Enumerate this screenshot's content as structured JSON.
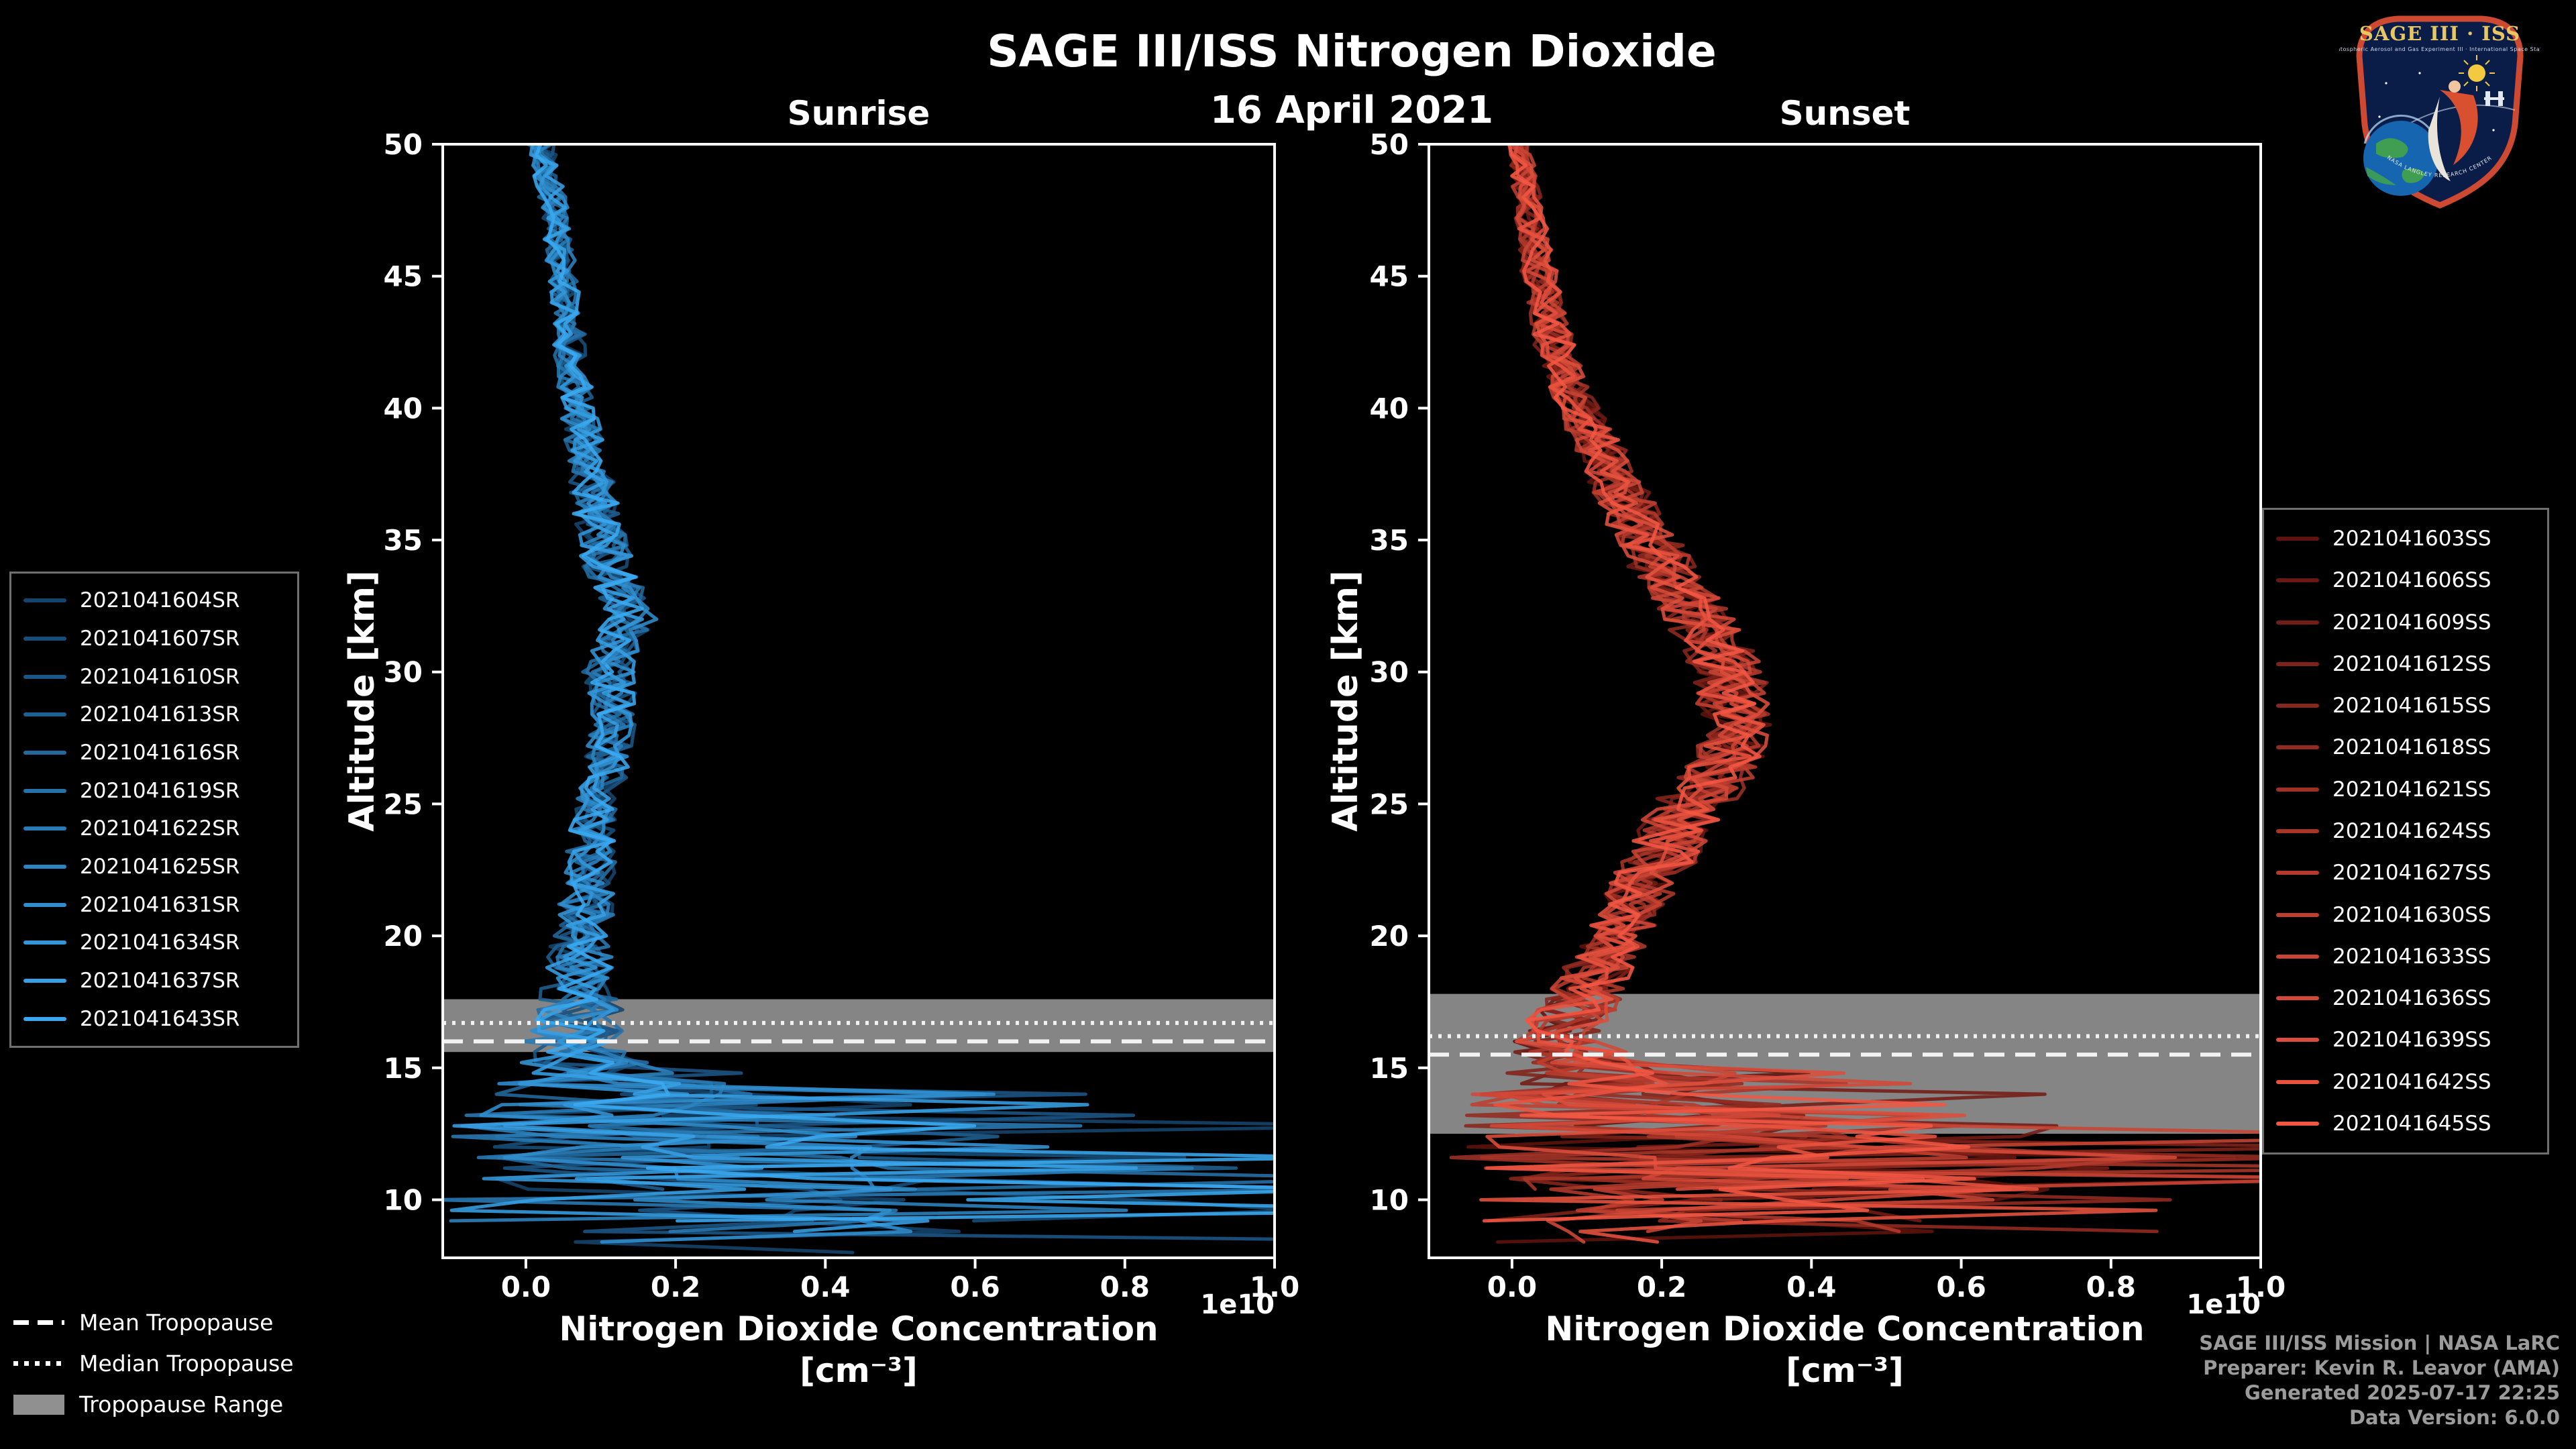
{
  "header": {
    "title": "SAGE III/ISS Nitrogen Dioxide",
    "date": "16 April 2021"
  },
  "chart_data": [
    {
      "type": "line",
      "title": "Sunrise",
      "xlabel": "Nitrogen Dioxide Concentration",
      "xlabel_units": "[cm⁻³]",
      "ylabel": "Altitude [km]",
      "offset_label": "1e10",
      "xlim": [
        -0.111,
        1.0
      ],
      "ylim": [
        7.8,
        50
      ],
      "xtick_values": [
        0.0,
        0.2,
        0.4,
        0.6,
        0.8,
        1.0
      ],
      "xtick_labels": [
        "0.0",
        "0.2",
        "0.4",
        "0.6",
        "0.8",
        "1.0"
      ],
      "ytick_values": [
        10,
        15,
        20,
        25,
        30,
        35,
        40,
        45,
        50
      ],
      "ytick_labels": [
        "10",
        "15",
        "20",
        "25",
        "30",
        "35",
        "40",
        "45",
        "50"
      ],
      "legend_position": "outside-left",
      "grid": false,
      "series": [
        "2021041604SR",
        "2021041607SR",
        "2021041610SR",
        "2021041613SR",
        "2021041616SR",
        "2021041619SR",
        "2021041622SR",
        "2021041625SR",
        "2021041631SR",
        "2021041634SR",
        "2021041637SR",
        "2021041643SR"
      ],
      "color_start": "#14456e",
      "color_end": "#3aa8f0",
      "band_color": "#909090",
      "base_profile": [
        [
          50,
          0.02
        ],
        [
          48,
          0.035
        ],
        [
          46,
          0.045
        ],
        [
          44,
          0.055
        ],
        [
          42,
          0.06
        ],
        [
          40,
          0.07
        ],
        [
          38,
          0.085
        ],
        [
          36,
          0.095
        ],
        [
          34,
          0.11
        ],
        [
          32,
          0.14
        ],
        [
          31,
          0.12
        ],
        [
          30,
          0.11
        ],
        [
          28,
          0.115
        ],
        [
          26,
          0.105
        ],
        [
          24,
          0.09
        ],
        [
          22,
          0.085
        ],
        [
          20,
          0.075
        ],
        [
          18,
          0.07
        ],
        [
          17,
          0.075
        ],
        [
          16,
          0.06
        ],
        [
          15,
          0.09
        ],
        [
          14,
          0.12
        ],
        [
          13,
          0.14
        ],
        [
          12,
          0.17
        ],
        [
          11,
          0.19
        ],
        [
          10,
          0.23
        ],
        [
          9,
          0.26
        ],
        [
          7.8,
          0.24
        ]
      ],
      "noise_profile": [
        [
          50,
          0.018
        ],
        [
          45,
          0.02
        ],
        [
          40,
          0.025
        ],
        [
          35,
          0.035
        ],
        [
          30,
          0.035
        ],
        [
          25,
          0.03
        ],
        [
          20,
          0.04
        ],
        [
          18,
          0.05
        ],
        [
          16,
          0.07
        ],
        [
          15,
          0.1
        ],
        [
          14,
          0.2
        ],
        [
          13,
          0.26
        ],
        [
          12,
          0.3
        ],
        [
          11,
          0.34
        ],
        [
          10,
          0.38
        ],
        [
          9,
          0.36
        ],
        [
          7.8,
          0.32
        ]
      ],
      "alt_step": 0.4,
      "alt_min_base": 7.9,
      "alt_min_jitter": 2.4,
      "spike_below": 15,
      "spike_prob": 0.3,
      "spike_scale": 3,
      "tropopause": {
        "mean": 16.0,
        "median": 16.7,
        "range": [
          15.6,
          17.6
        ]
      }
    },
    {
      "type": "line",
      "title": "Sunset",
      "xlabel": "Nitrogen Dioxide Concentration",
      "xlabel_units": "[cm⁻³]",
      "ylabel": "Altitude [km]",
      "offset_label": "1e10",
      "xlim": [
        -0.111,
        1.0
      ],
      "ylim": [
        7.8,
        50
      ],
      "xtick_values": [
        0.0,
        0.2,
        0.4,
        0.6,
        0.8,
        1.0
      ],
      "xtick_labels": [
        "0.0",
        "0.2",
        "0.4",
        "0.6",
        "0.8",
        "1.0"
      ],
      "ytick_values": [
        10,
        15,
        20,
        25,
        30,
        35,
        40,
        45,
        50
      ],
      "ytick_labels": [
        "10",
        "15",
        "20",
        "25",
        "30",
        "35",
        "40",
        "45",
        "50"
      ],
      "legend_position": "outside-right",
      "grid": false,
      "series": [
        "2021041603SS",
        "2021041606SS",
        "2021041609SS",
        "2021041612SS",
        "2021041615SS",
        "2021041618SS",
        "2021041621SS",
        "2021041624SS",
        "2021041627SS",
        "2021041630SS",
        "2021041633SS",
        "2021041636SS",
        "2021041639SS",
        "2021041642SS",
        "2021041645SS"
      ],
      "color_start": "#5f130e",
      "color_end": "#f25743",
      "band_color": "#909090",
      "base_profile": [
        [
          50,
          0.01
        ],
        [
          48,
          0.02
        ],
        [
          46,
          0.03
        ],
        [
          44,
          0.045
        ],
        [
          42,
          0.06
        ],
        [
          40,
          0.09
        ],
        [
          38,
          0.125
        ],
        [
          36,
          0.16
        ],
        [
          34,
          0.2
        ],
        [
          32,
          0.25
        ],
        [
          30,
          0.29
        ],
        [
          28,
          0.3
        ],
        [
          27,
          0.29
        ],
        [
          26,
          0.27
        ],
        [
          25,
          0.24
        ],
        [
          24,
          0.22
        ],
        [
          23,
          0.2
        ],
        [
          22,
          0.18
        ],
        [
          21,
          0.16
        ],
        [
          20,
          0.14
        ],
        [
          19,
          0.12
        ],
        [
          18,
          0.1
        ],
        [
          17,
          0.08
        ],
        [
          16,
          0.07
        ],
        [
          15,
          0.09
        ],
        [
          14,
          0.12
        ],
        [
          13,
          0.17
        ],
        [
          12,
          0.21
        ],
        [
          11,
          0.27
        ],
        [
          10,
          0.33
        ],
        [
          9,
          0.29
        ],
        [
          7.8,
          0.27
        ]
      ],
      "noise_profile": [
        [
          50,
          0.015
        ],
        [
          45,
          0.025
        ],
        [
          40,
          0.03
        ],
        [
          35,
          0.045
        ],
        [
          30,
          0.05
        ],
        [
          27,
          0.05
        ],
        [
          25,
          0.055
        ],
        [
          22,
          0.05
        ],
        [
          20,
          0.045
        ],
        [
          18,
          0.05
        ],
        [
          16,
          0.07
        ],
        [
          15,
          0.1
        ],
        [
          14,
          0.18
        ],
        [
          13,
          0.26
        ],
        [
          12,
          0.3
        ],
        [
          11,
          0.34
        ],
        [
          10,
          0.38
        ],
        [
          9,
          0.35
        ],
        [
          7.8,
          0.31
        ]
      ],
      "alt_step": 0.4,
      "alt_min_base": 7.9,
      "alt_min_jitter": 2.4,
      "spike_below": 15,
      "spike_prob": 0.3,
      "spike_scale": 3,
      "tropopause": {
        "mean": 15.5,
        "median": 16.2,
        "range": [
          12.5,
          17.8
        ]
      }
    }
  ],
  "tropopause_legend": {
    "mean": "Mean Tropopause",
    "median": "Median Tropopause",
    "range": "Tropopause Range"
  },
  "credits": {
    "line1": "SAGE III/ISS Mission | NASA LaRC",
    "line2": "Preparer: Kevin R. Leavor (AMA)",
    "line3": "Generated 2025-07-17 22:25",
    "line4": "Data Version: 6.0.0"
  },
  "logo": {
    "title": "SAGE III · ISS",
    "subtitle": "Stratospheric Aerosol and Gas Experiment III · International Space Station",
    "arc_text": "NASA LANGLEY RESEARCH CENTER"
  }
}
